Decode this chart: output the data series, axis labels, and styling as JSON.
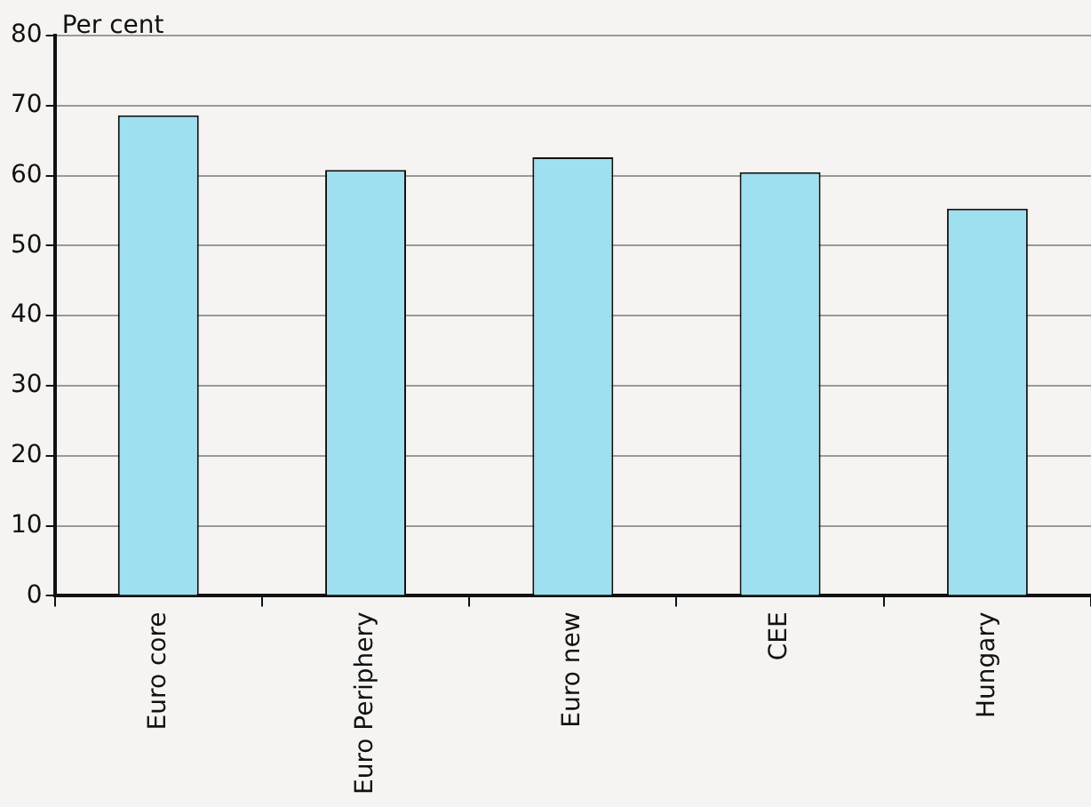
{
  "chart_data": {
    "type": "bar",
    "ylabel": "Per cent",
    "categories": [
      "Euro core",
      "Euro Periphery",
      "Euro new",
      "CEE",
      "Hungary"
    ],
    "values": [
      68.6,
      60.8,
      62.6,
      60.5,
      55.3
    ],
    "color": "#9ee0f0",
    "ylim": [
      0,
      80
    ],
    "yticks": [
      0,
      10,
      20,
      30,
      40,
      50,
      60,
      70,
      80
    ],
    "grid": "y",
    "legend": false
  }
}
